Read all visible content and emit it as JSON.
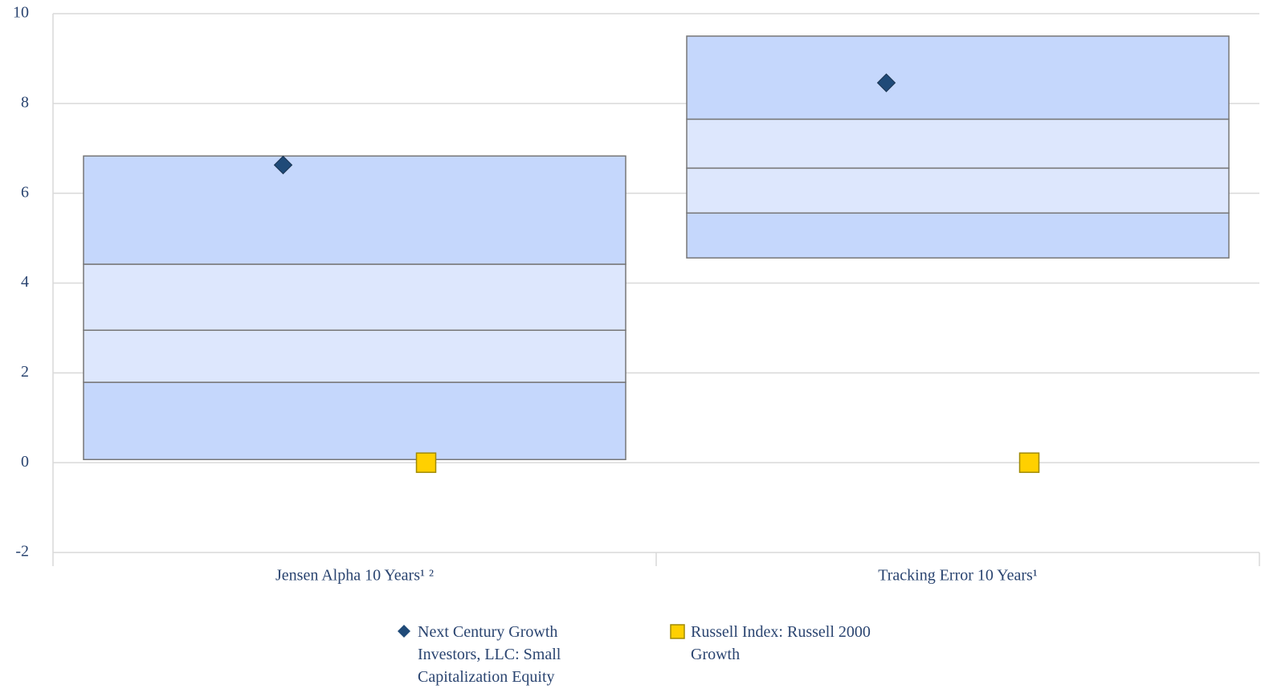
{
  "chart_data": {
    "type": "floating-box",
    "categories": [
      "Jensen Alpha 10 Years¹ ²",
      "Tracking Error 10 Years¹"
    ],
    "bands": [
      [
        0.07,
        1.79,
        2.95,
        4.42,
        6.83
      ],
      [
        4.56,
        5.56,
        6.56,
        7.65,
        9.5
      ]
    ],
    "band_colors": [
      "#c5d7fc",
      "#dde7fd"
    ],
    "series": [
      {
        "name": "Next Century Growth Investors, LLC: Small Capitalization Equity",
        "color": "#1f4a78",
        "marker": "diamond",
        "values": [
          6.63,
          8.46
        ]
      },
      {
        "name": "Russell Index: Russell 2000 Growth",
        "color": "#ffd000",
        "marker": "square",
        "values": [
          0,
          0
        ]
      }
    ],
    "ylim": [
      -2,
      10
    ],
    "yticks": [
      -2,
      0,
      2,
      4,
      6,
      8,
      10
    ],
    "grid": true,
    "legend": "bottom"
  }
}
